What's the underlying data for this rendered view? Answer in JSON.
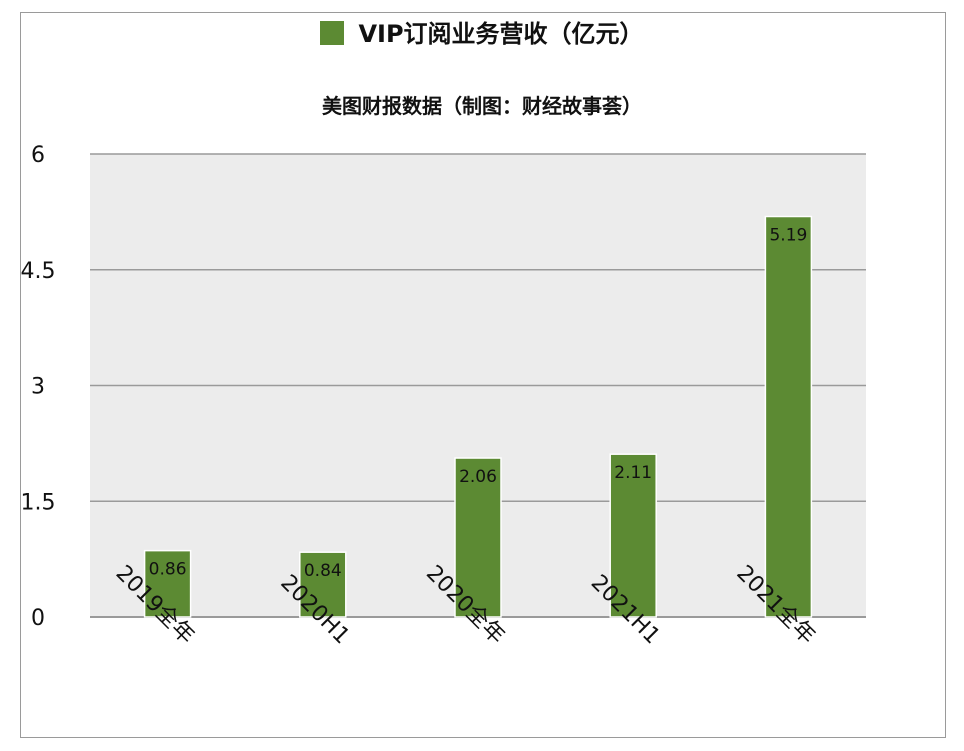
{
  "chart_data": {
    "type": "bar",
    "legend": "VIP订阅业务营收（亿元）",
    "subtitle": "美图财报数据（制图：财经故事荟）",
    "categories": [
      "2019全年",
      "2020H1",
      "2020全年",
      "2021H1",
      "2021全年"
    ],
    "series": [
      {
        "name": "VIP订阅业务营收（亿元）",
        "values": [
          0.86,
          0.84,
          2.06,
          2.11,
          5.19
        ]
      }
    ],
    "data_labels": [
      "0.86",
      "0.84",
      "2.06",
      "2.11",
      "5.19"
    ],
    "ylim": [
      0,
      6
    ],
    "yticks": [
      "0",
      "1.5",
      "3",
      "4.5",
      "6"
    ],
    "ytick_values": [
      0,
      1.5,
      3,
      4.5,
      6
    ],
    "grid": true,
    "legend_position": "top",
    "colors": {
      "bar": "#5c8a33",
      "plot_bg": "#ececec",
      "grid": "#9a9a9a"
    }
  }
}
